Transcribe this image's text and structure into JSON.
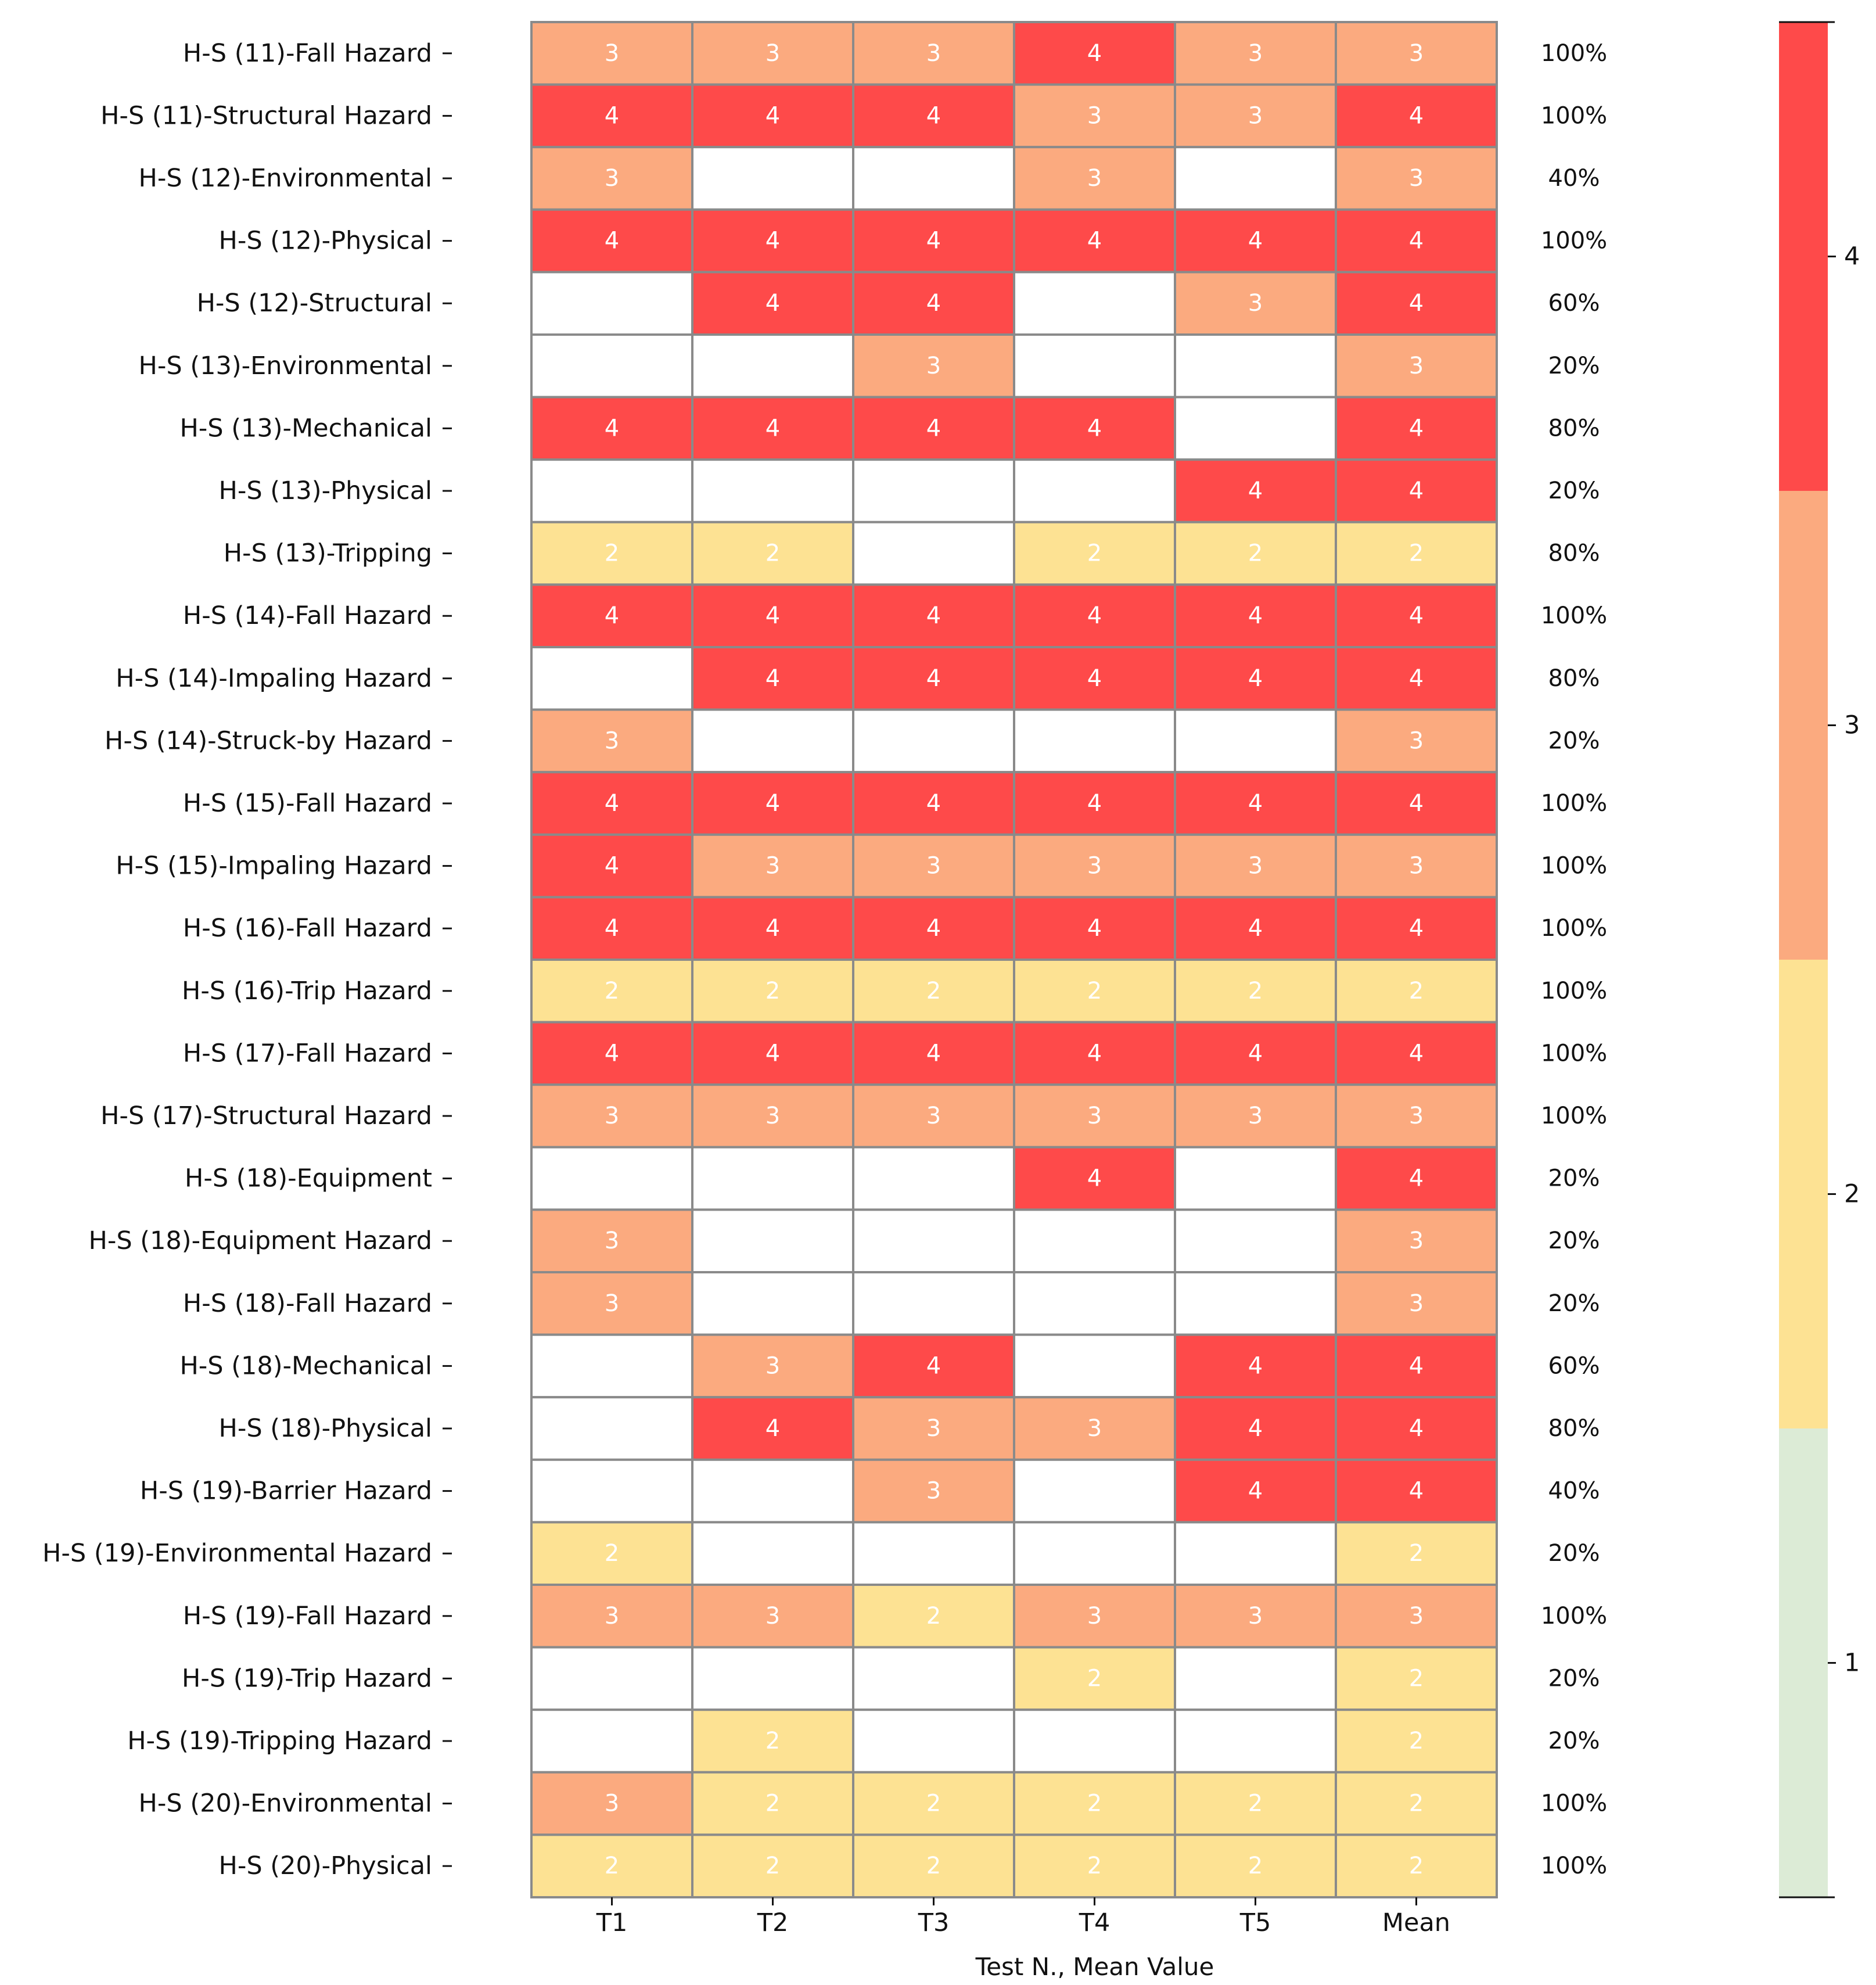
{
  "chart_data": {
    "type": "heatmap",
    "xlabel": "Test N., Mean Value",
    "columns": [
      "T1",
      "T2",
      "T3",
      "T4",
      "T5",
      "Mean"
    ],
    "rows": [
      {
        "label": "H-S (11)-Fall Hazard",
        "values": [
          3,
          3,
          3,
          4,
          3,
          3
        ],
        "pct": "100%"
      },
      {
        "label": "H-S (11)-Structural Hazard",
        "values": [
          4,
          4,
          4,
          3,
          3,
          4
        ],
        "pct": "100%"
      },
      {
        "label": "H-S (12)-Environmental",
        "values": [
          3,
          null,
          null,
          3,
          null,
          3
        ],
        "pct": "40%"
      },
      {
        "label": "H-S (12)-Physical",
        "values": [
          4,
          4,
          4,
          4,
          4,
          4
        ],
        "pct": "100%"
      },
      {
        "label": "H-S (12)-Structural",
        "values": [
          null,
          4,
          4,
          null,
          3,
          4
        ],
        "pct": "60%"
      },
      {
        "label": "H-S (13)-Environmental",
        "values": [
          null,
          null,
          3,
          null,
          null,
          3
        ],
        "pct": "20%"
      },
      {
        "label": "H-S (13)-Mechanical",
        "values": [
          4,
          4,
          4,
          4,
          null,
          4
        ],
        "pct": "80%"
      },
      {
        "label": "H-S (13)-Physical",
        "values": [
          null,
          null,
          null,
          null,
          4,
          4
        ],
        "pct": "20%"
      },
      {
        "label": "H-S (13)-Tripping",
        "values": [
          2,
          2,
          null,
          2,
          2,
          2
        ],
        "pct": "80%"
      },
      {
        "label": "H-S (14)-Fall Hazard",
        "values": [
          4,
          4,
          4,
          4,
          4,
          4
        ],
        "pct": "100%"
      },
      {
        "label": "H-S (14)-Impaling Hazard",
        "values": [
          null,
          4,
          4,
          4,
          4,
          4
        ],
        "pct": "80%"
      },
      {
        "label": "H-S (14)-Struck-by Hazard",
        "values": [
          3,
          null,
          null,
          null,
          null,
          3
        ],
        "pct": "20%"
      },
      {
        "label": "H-S (15)-Fall Hazard",
        "values": [
          4,
          4,
          4,
          4,
          4,
          4
        ],
        "pct": "100%"
      },
      {
        "label": "H-S (15)-Impaling Hazard",
        "values": [
          4,
          3,
          3,
          3,
          3,
          3
        ],
        "pct": "100%"
      },
      {
        "label": "H-S (16)-Fall Hazard",
        "values": [
          4,
          4,
          4,
          4,
          4,
          4
        ],
        "pct": "100%"
      },
      {
        "label": "H-S (16)-Trip Hazard",
        "values": [
          2,
          2,
          2,
          2,
          2,
          2
        ],
        "pct": "100%"
      },
      {
        "label": "H-S (17)-Fall Hazard",
        "values": [
          4,
          4,
          4,
          4,
          4,
          4
        ],
        "pct": "100%"
      },
      {
        "label": "H-S (17)-Structural Hazard",
        "values": [
          3,
          3,
          3,
          3,
          3,
          3
        ],
        "pct": "100%"
      },
      {
        "label": "H-S (18)-Equipment",
        "values": [
          null,
          null,
          null,
          4,
          null,
          4
        ],
        "pct": "20%"
      },
      {
        "label": "H-S (18)-Equipment Hazard",
        "values": [
          3,
          null,
          null,
          null,
          null,
          3
        ],
        "pct": "20%"
      },
      {
        "label": "H-S (18)-Fall Hazard",
        "values": [
          3,
          null,
          null,
          null,
          null,
          3
        ],
        "pct": "20%"
      },
      {
        "label": "H-S (18)-Mechanical",
        "values": [
          null,
          3,
          4,
          null,
          4,
          4
        ],
        "pct": "60%"
      },
      {
        "label": "H-S (18)-Physical",
        "values": [
          null,
          4,
          3,
          3,
          4,
          4
        ],
        "pct": "80%"
      },
      {
        "label": "H-S (19)-Barrier Hazard",
        "values": [
          null,
          null,
          3,
          null,
          4,
          4
        ],
        "pct": "40%"
      },
      {
        "label": "H-S (19)-Environmental Hazard",
        "values": [
          2,
          null,
          null,
          null,
          null,
          2
        ],
        "pct": "20%"
      },
      {
        "label": "H-S (19)-Fall Hazard",
        "values": [
          3,
          3,
          2,
          3,
          3,
          3
        ],
        "pct": "100%"
      },
      {
        "label": "H-S (19)-Trip Hazard",
        "values": [
          null,
          null,
          null,
          2,
          null,
          2
        ],
        "pct": "20%"
      },
      {
        "label": "H-S (19)-Tripping Hazard",
        "values": [
          null,
          2,
          null,
          null,
          null,
          2
        ],
        "pct": "20%"
      },
      {
        "label": "H-S (20)-Environmental",
        "values": [
          3,
          2,
          2,
          2,
          2,
          2
        ],
        "pct": "100%"
      },
      {
        "label": "H-S (20)-Physical",
        "values": [
          2,
          2,
          2,
          2,
          2,
          2
        ],
        "pct": "100%"
      }
    ],
    "colorbar": {
      "range": [
        0.5,
        4.5
      ],
      "ticks": [
        1,
        2,
        3,
        4
      ],
      "levels": [
        {
          "value": 1,
          "color": "#dcebd6"
        },
        {
          "value": 2,
          "color": "#fde293"
        },
        {
          "value": 3,
          "color": "#fbaa7f"
        },
        {
          "value": 4,
          "color": "#fe4a4a"
        }
      ]
    },
    "grid_color": "#8a8a8a",
    "empty_color": "#ffffff"
  }
}
